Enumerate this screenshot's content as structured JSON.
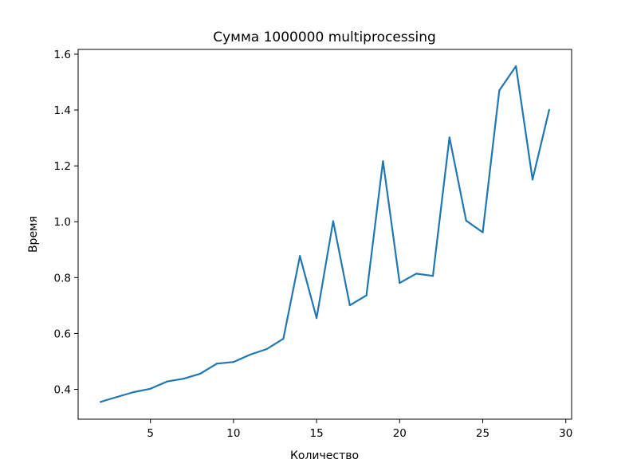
{
  "chart_data": {
    "type": "line",
    "title": "Сумма 1000000 multiprocessing",
    "xlabel": "Количество",
    "ylabel": "Время",
    "xlim": [
      0.65,
      30.35
    ],
    "ylim": [
      0.293,
      1.617
    ],
    "xticks": [
      5,
      10,
      15,
      20,
      25,
      30
    ],
    "xtick_labels": [
      "5",
      "10",
      "15",
      "20",
      "25",
      "30"
    ],
    "yticks": [
      0.4,
      0.6,
      0.8,
      1.0,
      1.2,
      1.4,
      1.6
    ],
    "ytick_labels": [
      "0.4",
      "0.6",
      "0.8",
      "1.0",
      "1.2",
      "1.4",
      "1.6"
    ],
    "grid": false,
    "series_color": "#1f77b4",
    "x": [
      2,
      3,
      4,
      5,
      6,
      7,
      8,
      9,
      10,
      11,
      12,
      13,
      14,
      15,
      16,
      17,
      18,
      19,
      20,
      21,
      22,
      23,
      24,
      25,
      26,
      27,
      28,
      29
    ],
    "y": [
      0.355,
      0.373,
      0.39,
      0.402,
      0.428,
      0.438,
      0.456,
      0.492,
      0.498,
      0.524,
      0.544,
      0.581,
      0.877,
      0.655,
      1.002,
      0.701,
      0.736,
      1.217,
      0.781,
      0.814,
      0.806,
      1.302,
      1.004,
      0.962,
      1.47,
      1.557,
      1.151,
      1.401
    ]
  }
}
